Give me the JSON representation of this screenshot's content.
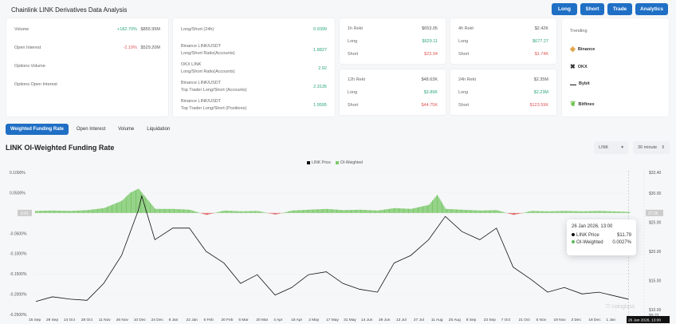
{
  "page_title": "Chainlink LINK Derivatives Data Analysis",
  "top_buttons": [
    "Long",
    "Short",
    "Trade",
    "Analytics"
  ],
  "market": {
    "rows": [
      {
        "label": "Volume",
        "change": "+182.70%",
        "value": "$855.95M",
        "dir": "up"
      },
      {
        "label": "Open Interest",
        "change": "-2.19%",
        "value": "$529.20M",
        "dir": "down"
      },
      {
        "label": "Options Volume",
        "change": "",
        "value": ""
      },
      {
        "label": "Options Open Interest",
        "change": "",
        "value": ""
      }
    ]
  },
  "ratios": [
    {
      "label": "Long/Short (24h)",
      "sub": "",
      "value": "0.9399"
    },
    {
      "label": "Binance LINK/USDT",
      "sub": "Long/Short Ratio(Accounts)",
      "value": "1.8827"
    },
    {
      "label": "OKX LINK",
      "sub": "Long/Short Ratio(Accounts)",
      "value": "2.92"
    },
    {
      "label": "Binance LINK/USDT",
      "sub": "Top Trader Long/Short (Accounts)",
      "value": "2.3135"
    },
    {
      "label": "Binance LINK/USDT",
      "sub": "Top Trader Long/Short (Positions)",
      "value": "1.9595"
    }
  ],
  "rekt": [
    {
      "label": "1h Rekt",
      "total": "$653.05",
      "long_label": "Long",
      "long": "$629.11",
      "short_label": "Short",
      "short": "$23.94"
    },
    {
      "label": "4h Rekt",
      "total": "$2.42K",
      "long_label": "Long",
      "long": "$677.27",
      "short_label": "Short",
      "short": "$1.74K"
    },
    {
      "label": "12h Rekt",
      "total": "$48.63K",
      "long_label": "Long",
      "long": "$3.89K",
      "short_label": "Short",
      "short": "$44.75K"
    },
    {
      "label": "24h Rekt",
      "total": "$2.35M",
      "long_label": "Long",
      "long": "$2.23M",
      "short_label": "Short",
      "short": "$123.59K"
    }
  ],
  "trending": {
    "title": "Trending",
    "items": [
      "Binance",
      "OKX",
      "Bybit",
      "Bitfinex"
    ]
  },
  "tabs": [
    "Weighted Funding Rate",
    "Open Interest",
    "Volume",
    "Liquidation"
  ],
  "chart_title": "LINK OI-Weighted Funding Rate",
  "selects": {
    "coin": "LINK",
    "interval": "30 minute"
  },
  "tooltip": {
    "date": "26 Jan 2026, 13:00",
    "price_label": "LINK Price",
    "price": "$11.79",
    "rate_label": "OI-Weighted",
    "rate": "0.0027%"
  },
  "colors": {
    "accent": "#1f6fc5",
    "price": "#111111",
    "funding_pos": "#7cc96b",
    "funding_neg": "#e06060",
    "up": "#2aa57a",
    "down": "#e05555"
  },
  "chart_data": {
    "type": "bar+line",
    "legend": [
      "LINK Price",
      "OI-Weighted"
    ],
    "legend_position": "top",
    "left_ticks": [
      "0.1000%",
      "0.0500%",
      "0.0000%",
      "-0.0500%",
      "-0.1000%",
      "-0.1500%",
      "-0.2000%",
      "-0.2500%"
    ],
    "left_range": [
      -0.25,
      0.1
    ],
    "right_ticks": [
      "$33.40",
      "$30.00",
      "$25.00",
      "$20.00",
      "$15.00",
      "$10.00",
      "$9.22"
    ],
    "right_range": [
      9.22,
      33.4
    ],
    "zero_label": "0.01",
    "right_marker": "27.05",
    "x_labels": [
      "15 Sep",
      "29 Sep",
      "14 Oct",
      "28 Oct",
      "11 Nov",
      "26 Nov",
      "10 Dec",
      "24 Dec",
      "8 Jan",
      "22 Jan",
      "5 Feb",
      "20 Feb",
      "6 Mar",
      "20 Mar",
      "4 Apr",
      "18 Apr",
      "2 May",
      "17 May",
      "31 May",
      "14 Jun",
      "29 Jun",
      "13 Jul",
      "27 Jul",
      "11 Aug",
      "25 Aug",
      "8 Sep",
      "23 Sep",
      "7 Oct",
      "21 Oct",
      "5 Nov",
      "19 Nov",
      "3 Dec",
      "18 Dec",
      "1 Jan"
    ],
    "x_current": "26 Jan 2026, 13:00",
    "price": [
      [
        "2024-09-15",
        11.4
      ],
      [
        "2024-09-29",
        12.2
      ],
      [
        "2024-10-14",
        11.8
      ],
      [
        "2024-10-28",
        11.6
      ],
      [
        "2024-11-11",
        14.5
      ],
      [
        "2024-11-26",
        19.3
      ],
      [
        "2024-12-10",
        27
      ],
      [
        "2024-12-13",
        29.5
      ],
      [
        "2024-12-24",
        22
      ],
      [
        "2025-01-08",
        24
      ],
      [
        "2025-01-22",
        24
      ],
      [
        "2025-02-05",
        20
      ],
      [
        "2025-02-20",
        18
      ],
      [
        "2025-03-06",
        14.5
      ],
      [
        "2025-03-20",
        16
      ],
      [
        "2025-04-04",
        12.5
      ],
      [
        "2025-04-18",
        13.8
      ],
      [
        "2025-05-02",
        16
      ],
      [
        "2025-05-17",
        16.5
      ],
      [
        "2025-05-31",
        14.5
      ],
      [
        "2025-06-14",
        13.5
      ],
      [
        "2025-06-29",
        13
      ],
      [
        "2025-07-13",
        18
      ],
      [
        "2025-07-27",
        19.3
      ],
      [
        "2025-08-11",
        22
      ],
      [
        "2025-08-25",
        26
      ],
      [
        "2025-09-08",
        23.4
      ],
      [
        "2025-09-23",
        22
      ],
      [
        "2025-10-07",
        24
      ],
      [
        "2025-10-21",
        17.3
      ],
      [
        "2025-11-05",
        15.2
      ],
      [
        "2025-11-19",
        13
      ],
      [
        "2025-12-03",
        13.8
      ],
      [
        "2025-12-18",
        12.7
      ],
      [
        "2026-01-01",
        13
      ],
      [
        "2026-01-26",
        11.79
      ]
    ],
    "funding": [
      [
        "2024-09-15",
        0.005
      ],
      [
        "2024-09-29",
        0.006
      ],
      [
        "2024-10-14",
        0.005
      ],
      [
        "2024-10-28",
        0.007
      ],
      [
        "2024-11-11",
        0.012
      ],
      [
        "2024-11-26",
        0.03
      ],
      [
        "2024-12-03",
        0.05
      ],
      [
        "2024-12-10",
        0.06
      ],
      [
        "2024-12-24",
        0.01
      ],
      [
        "2025-01-08",
        0.01
      ],
      [
        "2025-01-22",
        0.008
      ],
      [
        "2025-02-05",
        -0.005
      ],
      [
        "2025-02-20",
        0.006
      ],
      [
        "2025-03-06",
        0.004
      ],
      [
        "2025-03-20",
        0.005
      ],
      [
        "2025-04-04",
        -0.004
      ],
      [
        "2025-04-18",
        0.006
      ],
      [
        "2025-05-02",
        0.008
      ],
      [
        "2025-05-17",
        0.01
      ],
      [
        "2025-05-31",
        0.007
      ],
      [
        "2025-06-14",
        0.008
      ],
      [
        "2025-06-29",
        0.006
      ],
      [
        "2025-07-13",
        0.012
      ],
      [
        "2025-07-27",
        0.01
      ],
      [
        "2025-08-11",
        0.02
      ],
      [
        "2025-08-18",
        0.045
      ],
      [
        "2025-08-25",
        0.01
      ],
      [
        "2025-09-08",
        0.008
      ],
      [
        "2025-09-23",
        0.006
      ],
      [
        "2025-10-07",
        0.007
      ],
      [
        "2025-10-21",
        -0.005
      ],
      [
        "2025-11-05",
        0.005
      ],
      [
        "2025-11-19",
        0.004
      ],
      [
        "2025-12-03",
        0.005
      ],
      [
        "2025-12-18",
        0.004
      ],
      [
        "2026-01-01",
        0.005
      ],
      [
        "2026-01-26",
        0.0027
      ]
    ]
  }
}
